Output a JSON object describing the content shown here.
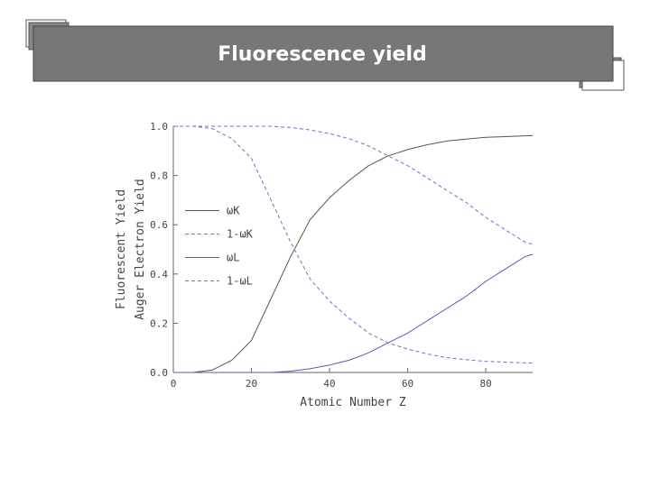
{
  "slide_title": "Fluorescence yield",
  "chart_data": {
    "type": "line",
    "x_label": "Atomic Number Z",
    "y_label": [
      "Fluorescent Yield",
      "Auger Electron Yield"
    ],
    "x": [
      0,
      5,
      10,
      15,
      20,
      25,
      30,
      35,
      40,
      45,
      50,
      55,
      60,
      65,
      70,
      75,
      80,
      85,
      90,
      92
    ],
    "series": [
      {
        "name": "ωK",
        "color": "#555555",
        "dashed": false,
        "values": [
          0,
          0,
          0.01,
          0.05,
          0.13,
          0.3,
          0.47,
          0.62,
          0.71,
          0.78,
          0.84,
          0.88,
          0.905,
          0.925,
          0.94,
          0.948,
          0.955,
          0.958,
          0.961,
          0.962
        ]
      },
      {
        "name": "1-ωK",
        "color": "#7070c8",
        "dashed": true,
        "values": [
          1,
          1,
          0.99,
          0.95,
          0.87,
          0.7,
          0.53,
          0.38,
          0.29,
          0.22,
          0.16,
          0.12,
          0.095,
          0.075,
          0.06,
          0.052,
          0.045,
          0.042,
          0.039,
          0.038
        ]
      },
      {
        "name": "ωL",
        "color": "#5a5ab4",
        "dashed": false,
        "values": [
          0,
          0,
          0,
          0,
          0,
          0,
          0.005,
          0.015,
          0.03,
          0.05,
          0.08,
          0.12,
          0.16,
          0.21,
          0.26,
          0.31,
          0.37,
          0.42,
          0.47,
          0.48
        ]
      },
      {
        "name": "1-ωL",
        "color": "#7070c8",
        "dashed": true,
        "values": [
          1,
          1,
          1,
          1,
          1,
          1,
          0.995,
          0.985,
          0.97,
          0.95,
          0.92,
          0.88,
          0.84,
          0.79,
          0.74,
          0.69,
          0.63,
          0.58,
          0.53,
          0.52
        ]
      }
    ],
    "xlim": [
      0,
      92
    ],
    "ylim": [
      0,
      1
    ],
    "xticks": [
      0,
      20,
      40,
      60,
      80
    ],
    "yticks": [
      {
        "value": 0,
        "label": "0.0"
      },
      {
        "value": 0.2,
        "label": "0.2"
      },
      {
        "value": 0.4,
        "label": "0.4"
      },
      {
        "value": 0.6,
        "label": "0.6"
      },
      {
        "value": 0.8,
        "label": "0.8"
      },
      {
        "value": 1,
        "label": "1.0"
      }
    ],
    "legend": "center-left"
  }
}
